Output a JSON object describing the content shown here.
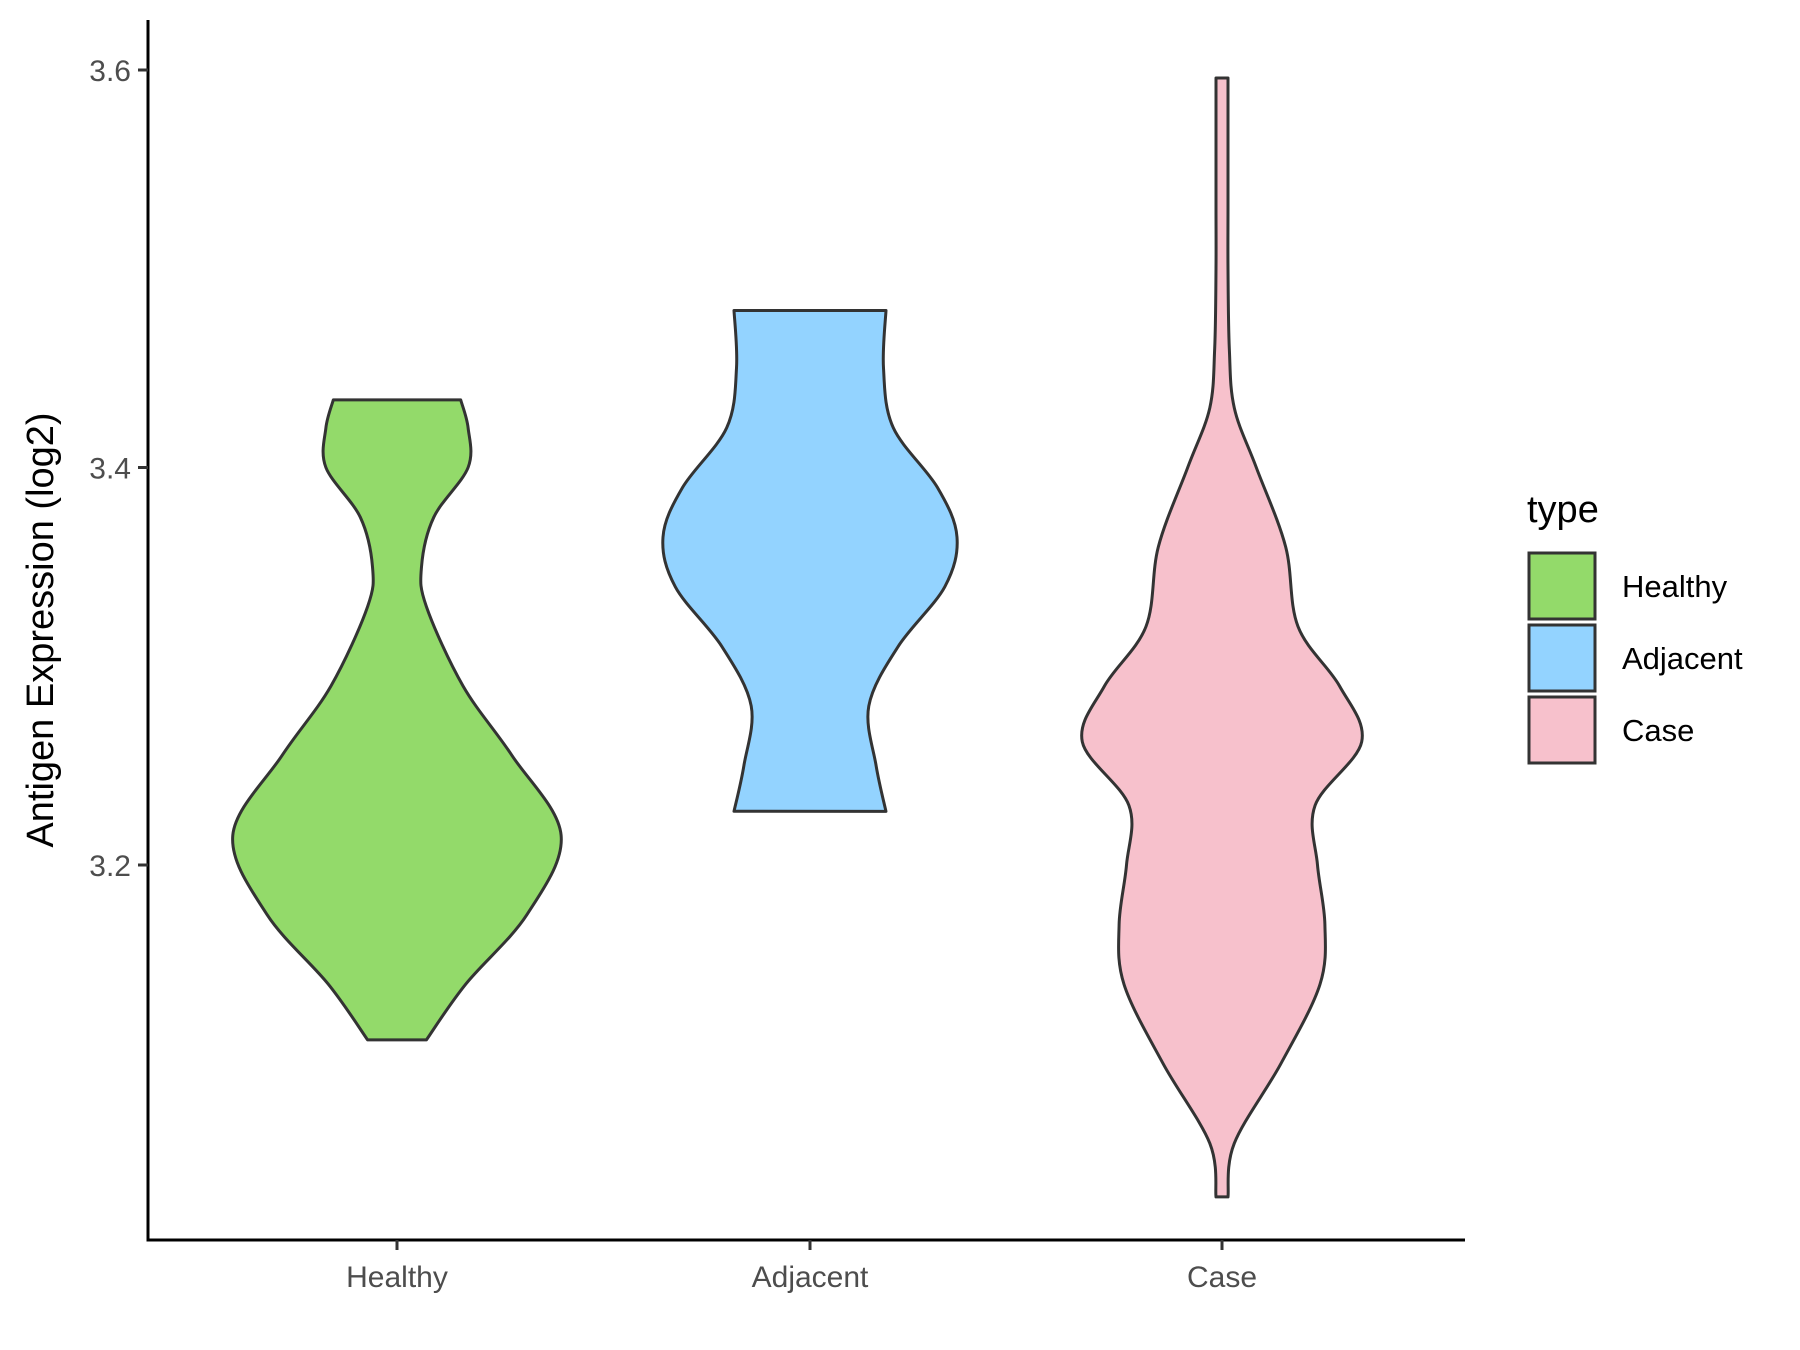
{
  "chart_data": {
    "type": "violin",
    "ylabel": "Antigen Expression (log2)",
    "xlabel": "",
    "categories": [
      "Healthy",
      "Adjacent",
      "Case"
    ],
    "y_ticks": [
      3.2,
      3.4,
      3.6
    ],
    "ylim": [
      3.015,
      3.625
    ],
    "grid": false,
    "legend": {
      "title": "type",
      "position": "right",
      "entries": [
        "Healthy",
        "Adjacent",
        "Case"
      ]
    },
    "colors": {
      "Healthy": "#93da6a",
      "Adjacent": "#93d3ff",
      "Case": "#f7c1cc",
      "outline": "#333333"
    },
    "series": [
      {
        "category": "Healthy",
        "min": 3.112,
        "max": 3.434,
        "density_y": [
          3.112,
          3.14,
          3.175,
          3.215,
          3.255,
          3.29,
          3.33,
          3.35,
          3.375,
          3.4,
          3.42,
          3.434
        ],
        "density_halfwidth": [
          0.12,
          0.28,
          0.53,
          0.67,
          0.47,
          0.27,
          0.12,
          0.1,
          0.15,
          0.29,
          0.29,
          0.26
        ]
      },
      {
        "category": "Adjacent",
        "min": 3.227,
        "max": 3.479,
        "density_y": [
          3.227,
          3.25,
          3.28,
          3.31,
          3.34,
          3.365,
          3.39,
          3.42,
          3.45,
          3.479
        ],
        "density_halfwidth": [
          0.31,
          0.27,
          0.24,
          0.36,
          0.55,
          0.6,
          0.52,
          0.34,
          0.3,
          0.31
        ]
      },
      {
        "category": "Case",
        "min": 3.033,
        "max": 3.596,
        "density_y": [
          3.033,
          3.06,
          3.1,
          3.14,
          3.17,
          3.2,
          3.23,
          3.262,
          3.29,
          3.32,
          3.36,
          3.4,
          3.43,
          3.46,
          3.5,
          3.53,
          3.56,
          3.596
        ],
        "density_halfwidth": [
          0.0,
          0.05,
          0.24,
          0.4,
          0.42,
          0.39,
          0.38,
          0.57,
          0.48,
          0.31,
          0.26,
          0.14,
          0.05,
          0.03,
          0.01,
          0.0,
          0.0,
          0.0
        ]
      }
    ]
  }
}
